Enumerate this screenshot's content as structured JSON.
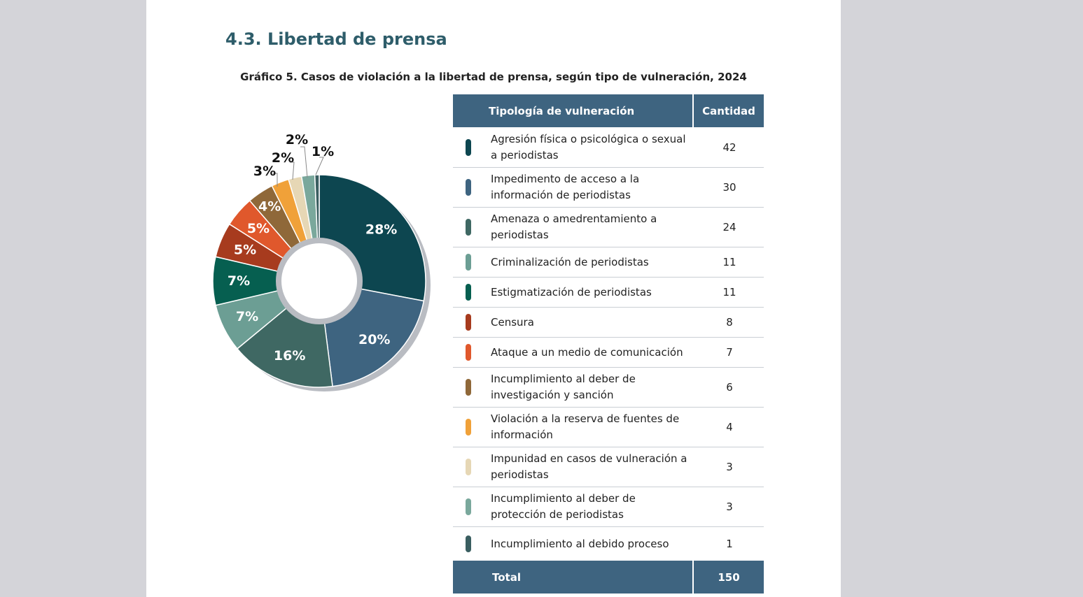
{
  "section_title": "4.3. Libertad de prensa",
  "chart_title": "Gráfico 5. Casos de violación a la libertad de prensa, según tipo de vulneración, 2024",
  "table": {
    "header_type": "Tipología de vulneración",
    "header_count": "Cantidad",
    "total_label": "Total",
    "total_value": "150"
  },
  "chart_data": {
    "type": "pie",
    "categories": [
      "Agresión física o psicológica o sexual a periodistas",
      "Impedimento de acceso a la información de periodistas",
      "Amenaza o amedrentamiento a periodistas",
      "Criminalización de periodistas",
      "Estigmatización de periodistas",
      "Censura",
      "Ataque a un medio de comunicación",
      "Incumplimiento al deber de investigación y sanción",
      "Violación a la reserva de fuentes de información",
      "Impunidad en casos de vulneración a periodistas",
      "Incumplimiento al deber de protección de periodistas",
      "Incumplimiento al debido proceso"
    ],
    "values": [
      42,
      30,
      24,
      11,
      11,
      8,
      7,
      6,
      4,
      3,
      3,
      1
    ],
    "labels": [
      "28%",
      "20%",
      "16%",
      "7%",
      "7%",
      "5%",
      "5%",
      "4%",
      "3%",
      "2%",
      "2%",
      "1%"
    ],
    "colors": [
      "#0d4650",
      "#3e6480",
      "#3f6863",
      "#6c9e94",
      "#065f50",
      "#a73b1e",
      "#e0582c",
      "#8f6839",
      "#f0a139",
      "#e6d7b5",
      "#7aa89c",
      "#3a5e60"
    ],
    "hole": "donut"
  }
}
